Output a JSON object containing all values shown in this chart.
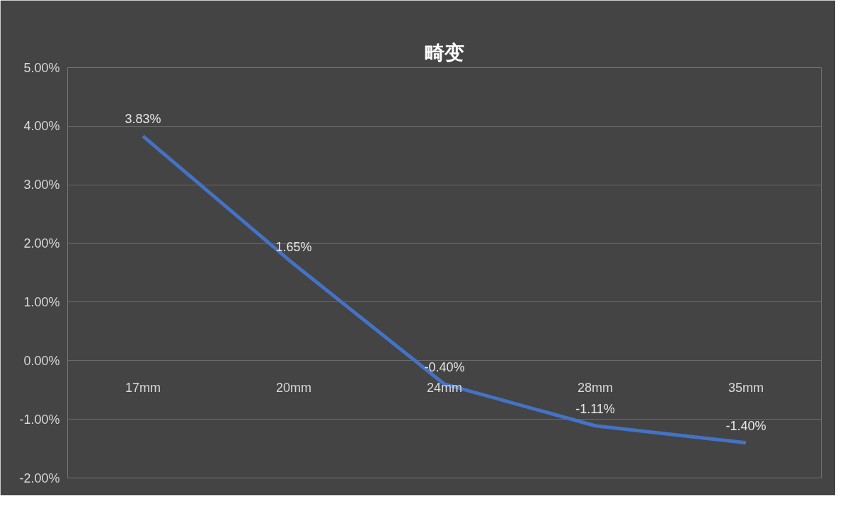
{
  "chart_data": {
    "type": "line",
    "title": "畸变",
    "categories": [
      "17mm",
      "20mm",
      "24mm",
      "28mm",
      "35mm"
    ],
    "series": [
      {
        "color": "#4472c4",
        "values": [
          3.83,
          1.65,
          -0.4,
          -1.11,
          -1.4
        ],
        "value_labels": [
          "3.83%",
          "1.65%",
          "-0.40%",
          "-1.11%",
          "-1.40%"
        ]
      }
    ],
    "ylim": [
      -2,
      5
    ],
    "yticks": [
      {
        "value": -2,
        "label": "-2.00%"
      },
      {
        "value": -1,
        "label": "-1.00%"
      },
      {
        "value": 0,
        "label": "0.00%"
      },
      {
        "value": 1,
        "label": "1.00%"
      },
      {
        "value": 2,
        "label": "2.00%"
      },
      {
        "value": 3,
        "label": "3.00%"
      },
      {
        "value": 4,
        "label": "4.00%"
      },
      {
        "value": 5,
        "label": "5.00%"
      }
    ],
    "grid": "y",
    "marker": "none",
    "line_style": "solid"
  }
}
